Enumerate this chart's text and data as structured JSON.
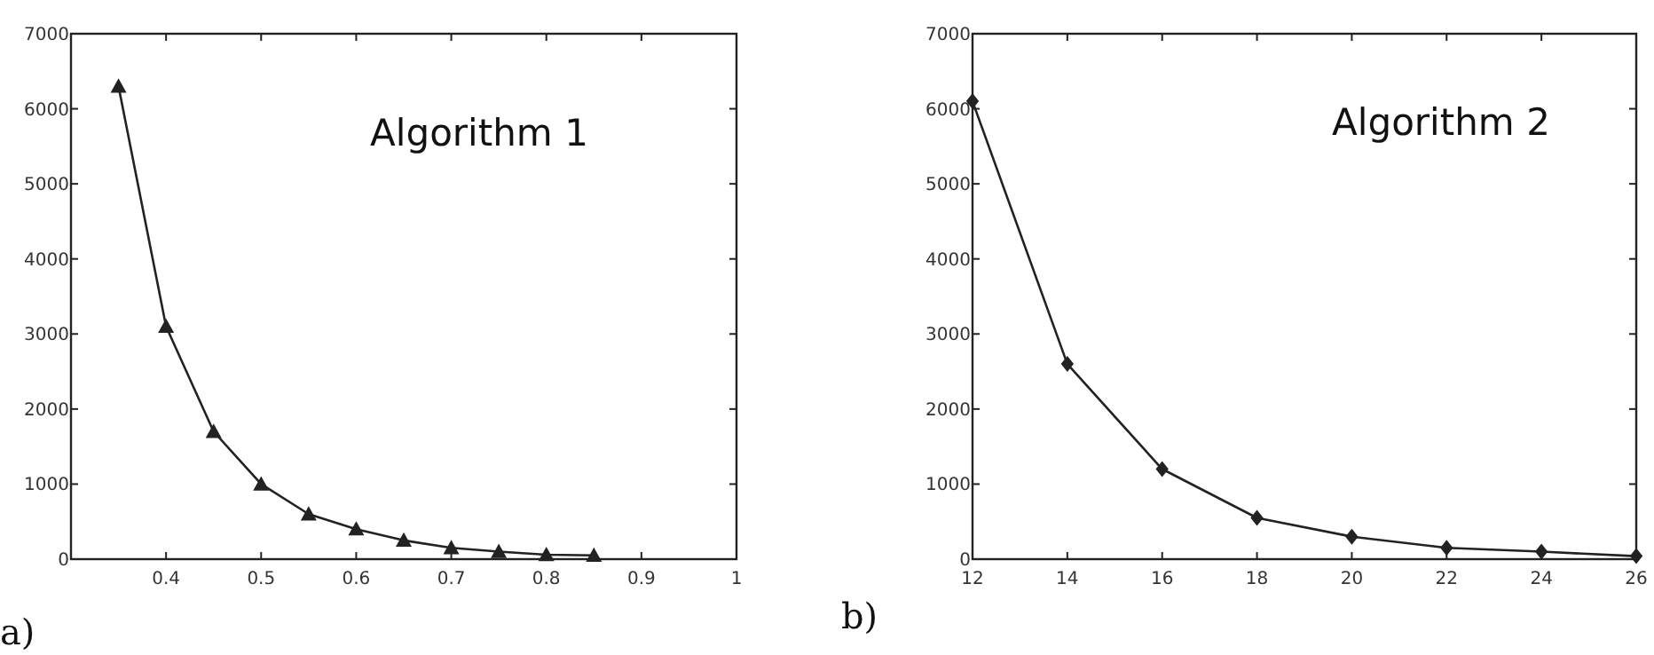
{
  "chart_data": [
    {
      "type": "line",
      "x": [
        0.35,
        0.4,
        0.45,
        0.5,
        0.55,
        0.6,
        0.65,
        0.7,
        0.75,
        0.8,
        0.85
      ],
      "series": [
        {
          "color": "#222222",
          "values": [
            6300,
            3100,
            1700,
            1000,
            600,
            400,
            250,
            150,
            100,
            60,
            50
          ]
        }
      ],
      "xlim": [
        0.3,
        1
      ],
      "xticks": [
        0.4,
        0.5,
        0.6,
        0.7,
        0.8,
        0.9,
        1
      ],
      "ylim": [
        0,
        7000
      ],
      "yticks": [
        0,
        1000,
        2000,
        3000,
        4000,
        5000,
        6000,
        7000
      ],
      "marker": "triangle",
      "line_style": "solid",
      "annotations": [
        "Algorithm 1",
        "a)"
      ]
    },
    {
      "type": "line",
      "x": [
        12,
        14,
        16,
        18,
        20,
        22,
        24,
        26
      ],
      "series": [
        {
          "color": "#222222",
          "values": [
            6100,
            2600,
            1200,
            550,
            300,
            150,
            100,
            40
          ]
        }
      ],
      "xlim": [
        12,
        26
      ],
      "xticks": [
        12,
        14,
        16,
        18,
        20,
        22,
        24,
        26
      ],
      "ylim": [
        0,
        7000
      ],
      "yticks": [
        0,
        1000,
        2000,
        3000,
        4000,
        5000,
        6000,
        7000
      ],
      "marker": "diamond",
      "line_style": "solid",
      "annotations": [
        "Algorithm 2",
        "b)"
      ]
    }
  ]
}
